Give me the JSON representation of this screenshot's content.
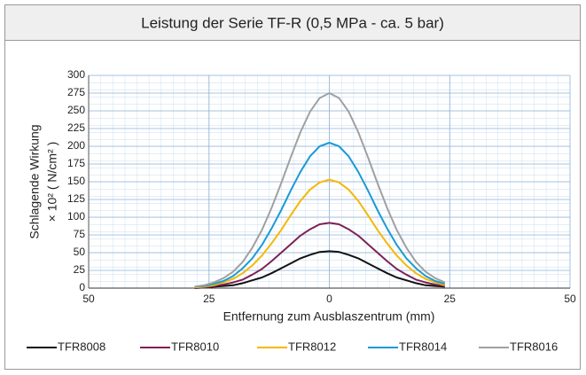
{
  "chart_data": {
    "type": "line",
    "title": "Leistung der Serie TF-R (0,5 MPa - ca. 5 bar)",
    "ylabel": [
      "Schlagende Wirkung",
      "× 10² ( N/cm² )"
    ],
    "xlabel": "Entfernung zum Ausblaszentrum (mm)",
    "x": [
      -28,
      -26,
      -24,
      -22,
      -20,
      -18,
      -16,
      -14,
      -12,
      -10,
      -8,
      -6,
      -4,
      -2,
      0,
      2,
      4,
      6,
      8,
      10,
      12,
      14,
      16,
      18,
      20,
      22,
      24
    ],
    "series": [
      {
        "name": "TFR8008",
        "color": "#111111",
        "values": [
          0,
          1,
          2,
          3,
          4,
          7,
          11,
          15,
          21,
          28,
          35,
          42,
          47,
          51,
          52,
          51,
          47,
          42,
          35,
          28,
          21,
          15,
          11,
          7,
          4,
          3,
          2
        ]
      },
      {
        "name": "TFR8010",
        "color": "#7b2256",
        "values": [
          1,
          1,
          3,
          5,
          8,
          12,
          19,
          27,
          38,
          50,
          62,
          74,
          83,
          90,
          92,
          90,
          83,
          74,
          62,
          50,
          38,
          27,
          19,
          12,
          8,
          5,
          3
        ]
      },
      {
        "name": "TFR8012",
        "color": "#f5b800",
        "values": [
          1,
          2,
          4,
          8,
          13,
          21,
          32,
          46,
          63,
          82,
          103,
          123,
          139,
          149,
          153,
          149,
          139,
          123,
          103,
          82,
          63,
          46,
          32,
          21,
          13,
          8,
          4
        ]
      },
      {
        "name": "TFR8014",
        "color": "#1a9ad6",
        "values": [
          2,
          3,
          6,
          10,
          17,
          28,
          42,
          61,
          84,
          110,
          138,
          164,
          186,
          200,
          205,
          200,
          186,
          164,
          138,
          110,
          84,
          61,
          42,
          28,
          17,
          10,
          6
        ]
      },
      {
        "name": "TFR8016",
        "color": "#a0a0a0",
        "values": [
          2,
          4,
          8,
          14,
          23,
          37,
          57,
          82,
          113,
          148,
          185,
          220,
          249,
          268,
          275,
          268,
          249,
          220,
          185,
          148,
          113,
          82,
          57,
          37,
          23,
          14,
          8
        ]
      }
    ],
    "xlim": [
      -50,
      50
    ],
    "xticks": [
      {
        "value": -50,
        "label": "50"
      },
      {
        "value": -25,
        "label": "25"
      },
      0,
      25,
      50
    ],
    "ylim": [
      0,
      300
    ],
    "yticks": [
      0,
      25,
      50,
      75,
      100,
      125,
      150,
      175,
      200,
      225,
      250,
      275,
      300
    ],
    "grid": true
  }
}
